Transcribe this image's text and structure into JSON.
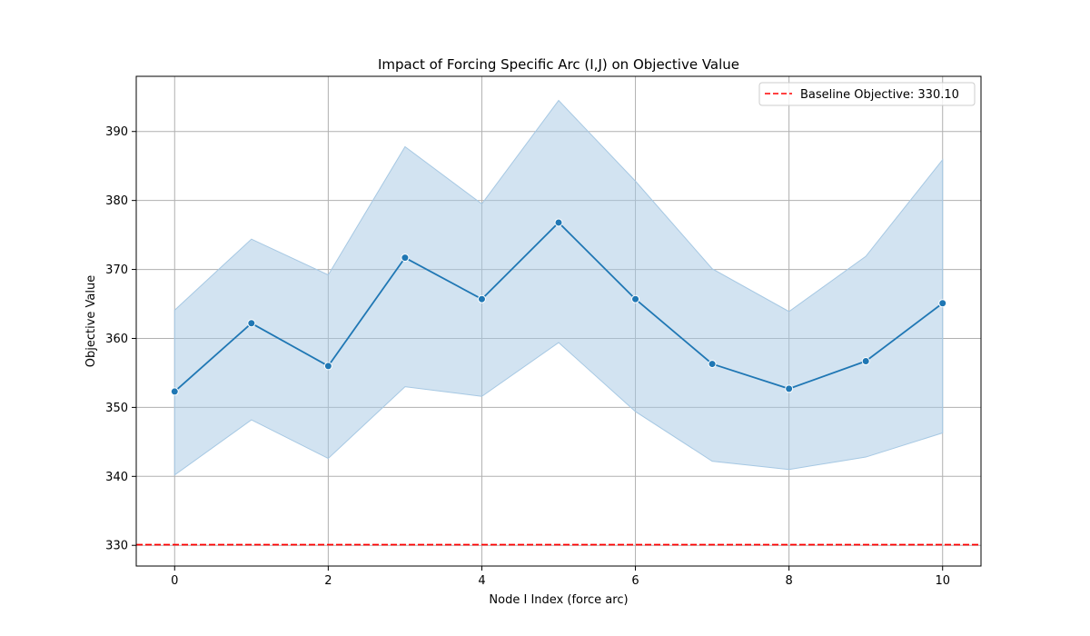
{
  "chart_data": {
    "type": "line",
    "title": "Impact of Forcing Specific Arc (I,J) on Objective Value",
    "xlabel": "Node I Index (force arc)",
    "ylabel": "Objective Value",
    "xlim": [
      -0.5,
      10.5
    ],
    "ylim": [
      327,
      398
    ],
    "x_ticks": [
      0,
      2,
      4,
      6,
      8,
      10
    ],
    "y_ticks": [
      330,
      340,
      350,
      360,
      370,
      380,
      390
    ],
    "grid": true,
    "legend_position": "top-right",
    "series": [
      {
        "x": [
          0,
          1,
          2,
          3,
          4,
          5,
          6,
          7,
          8,
          9,
          10
        ],
        "values": [
          352.3,
          362.2,
          356.0,
          371.7,
          365.7,
          376.8,
          365.7,
          356.3,
          352.7,
          356.7,
          365.1
        ],
        "lower": [
          340.2,
          348.2,
          342.6,
          353.0,
          351.6,
          359.4,
          349.4,
          342.2,
          341.0,
          342.8,
          346.3
        ],
        "upper": [
          364.1,
          374.4,
          369.2,
          387.8,
          379.5,
          394.5,
          382.8,
          370.1,
          363.9,
          371.9,
          385.9
        ],
        "color": "#1f77b4",
        "band_color": "#a6c8e3"
      }
    ],
    "baseline": {
      "value": 330.1,
      "label": "Baseline Objective: 330.10",
      "color": "#ff0000"
    }
  }
}
